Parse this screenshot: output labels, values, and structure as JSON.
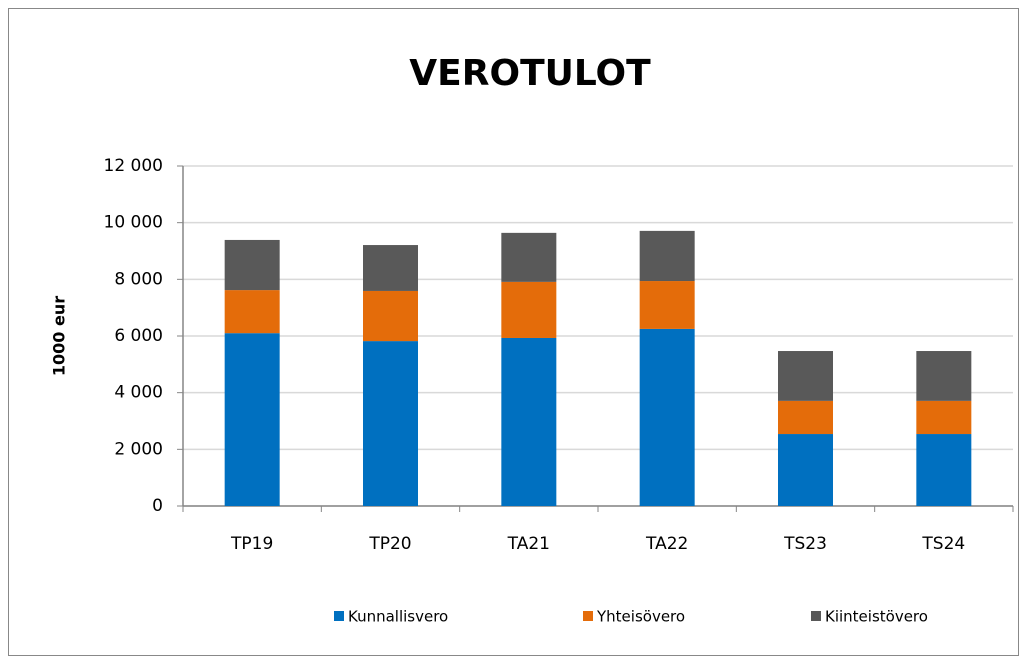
{
  "chart_data": {
    "type": "stacked_bar",
    "title": "VEROTULOT",
    "y_label": "1000 eur",
    "categories": [
      "TP19",
      "TP20",
      "TA21",
      "TA22",
      "TS23",
      "TS24"
    ],
    "series": [
      {
        "name": "Kunnallisvero",
        "color": "#0070c0",
        "values": [
          6100,
          5820,
          5930,
          6250,
          2540,
          2540
        ]
      },
      {
        "name": "Yhteisövero",
        "color": "#e46c0a",
        "values": [
          1520,
          1770,
          1980,
          1690,
          1170,
          1170
        ]
      },
      {
        "name": "Kiinteistövero",
        "color": "#595959",
        "values": [
          1770,
          1620,
          1730,
          1770,
          1760,
          1760
        ]
      }
    ],
    "ylim": [
      0,
      12000
    ],
    "yticks": [
      0,
      {
        "value": 2000,
        "label": "2 000"
      },
      {
        "value": 4000,
        "label": "4 000"
      },
      {
        "value": 6000,
        "label": "6 000"
      },
      {
        "value": 8000,
        "label": "8 000"
      },
      {
        "value": 10000,
        "label": "10 000"
      },
      {
        "value": 12000,
        "label": "12 000"
      }
    ],
    "grid": true,
    "legend": "bottom"
  }
}
